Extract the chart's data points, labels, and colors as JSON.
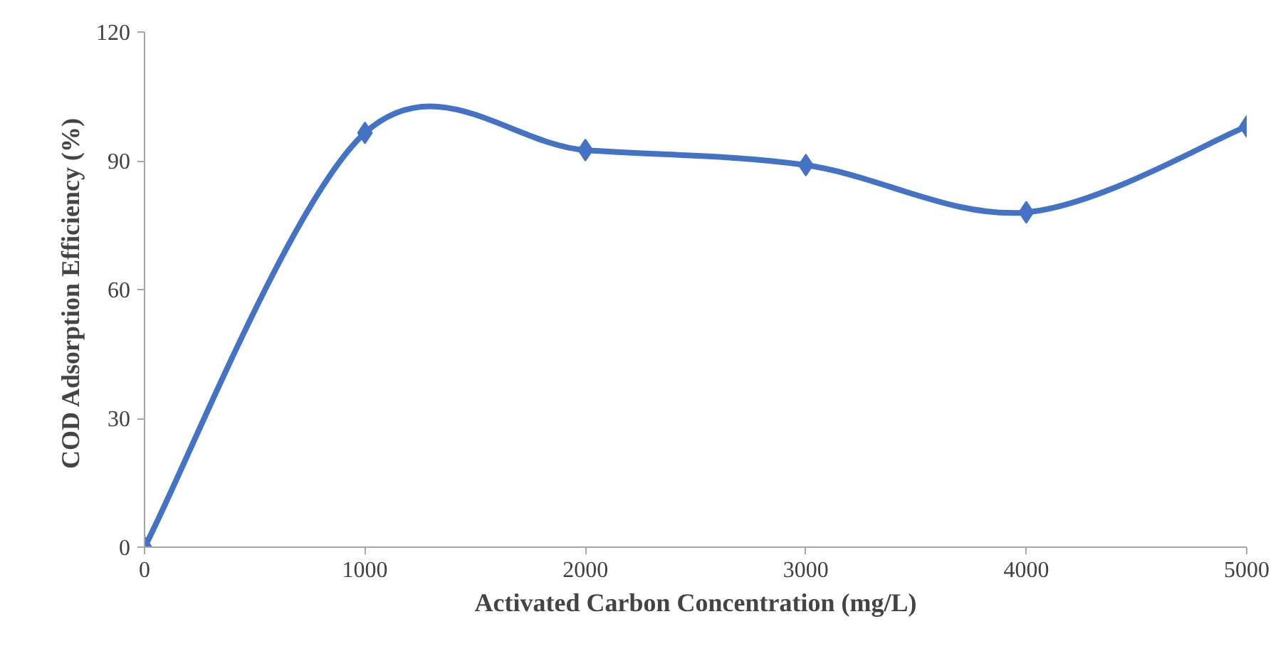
{
  "chart_data": {
    "type": "line",
    "xlabel": "Activated Carbon Concentration (mg/L)",
    "ylabel": "COD Adsorption  Efficiency (%)",
    "x": [
      0,
      1000,
      2000,
      3000,
      4000,
      5000
    ],
    "series": [
      {
        "color": "#4472c4",
        "values": [
          0,
          96.5,
          92.5,
          89,
          78,
          98
        ]
      }
    ],
    "xlim": [
      0,
      5000
    ],
    "xticks": [
      0,
      1000,
      2000,
      3000,
      4000,
      5000
    ],
    "ylim": [
      0,
      120
    ],
    "yticks": [
      0,
      30,
      60,
      90,
      120
    ],
    "grid": false,
    "marker": "diamond",
    "line_style": "solid"
  }
}
